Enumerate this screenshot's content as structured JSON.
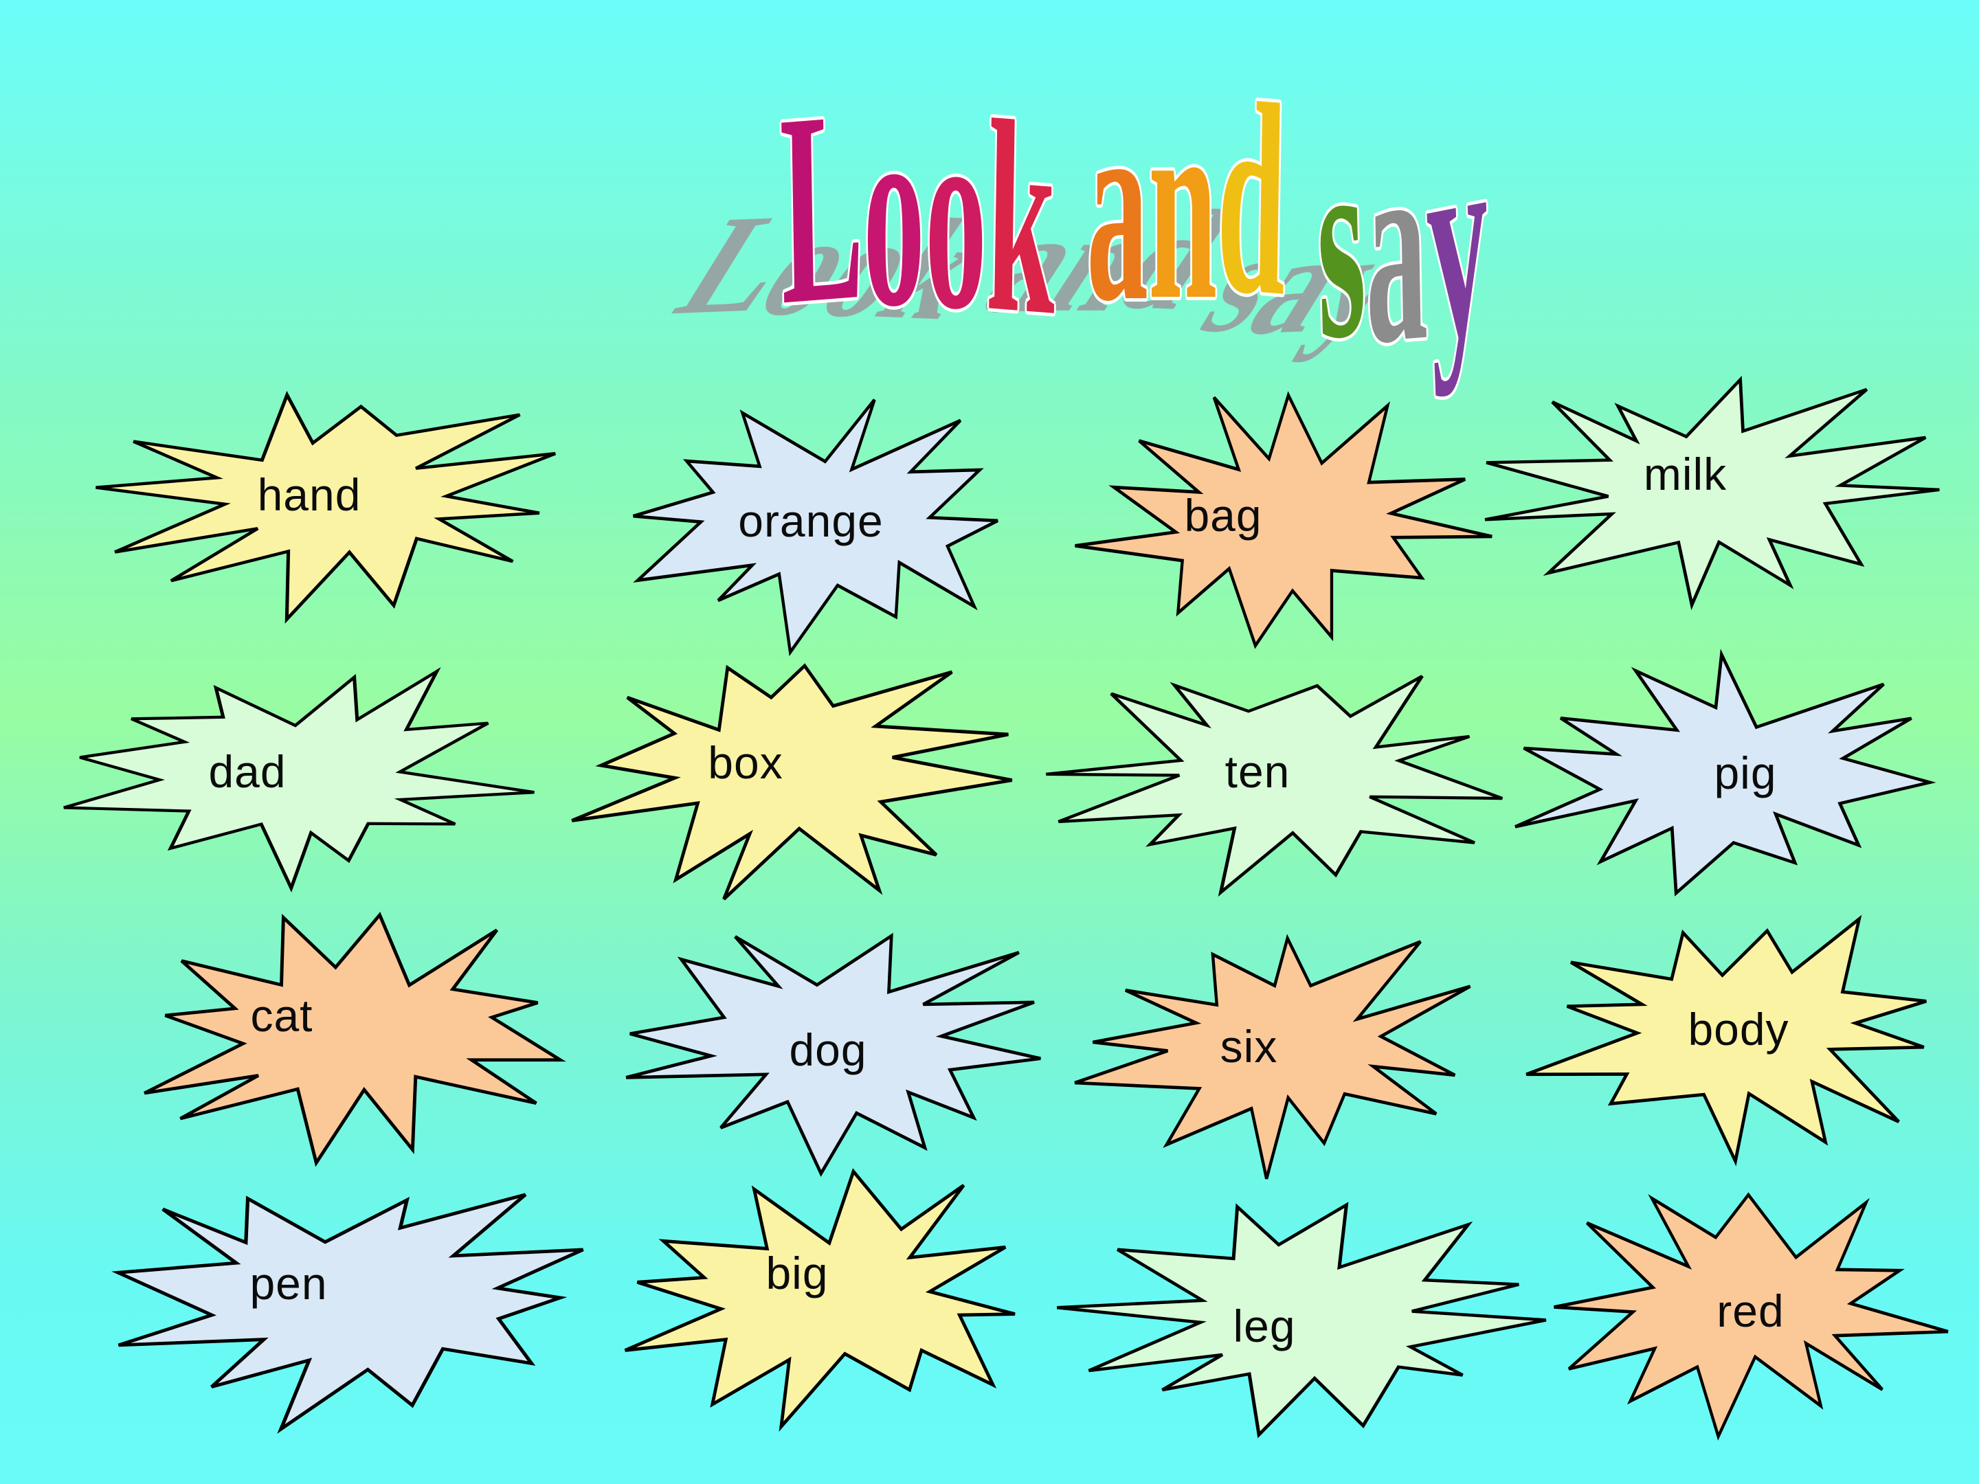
{
  "slide": {
    "background": {
      "top": "#6BFDFA",
      "upper_mid": "#83F9C8",
      "mid_green": "#98FCA2",
      "lower_mid": "#7CF5D2",
      "bottom": "#6AFBF8"
    },
    "title": {
      "text": "Look and say",
      "shadow_color": "#97A1A1",
      "letters": [
        {
          "ch": "L",
          "color": "#BE1273"
        },
        {
          "ch": "o",
          "color": "#C61670"
        },
        {
          "ch": "o",
          "color": "#CF1B61"
        },
        {
          "ch": "k",
          "color": "#DA2448"
        },
        {
          "ch": " ",
          "color": ""
        },
        {
          "ch": "a",
          "color": "#E9791B"
        },
        {
          "ch": "n",
          "color": "#F19D15"
        },
        {
          "ch": "d",
          "color": "#EFC013"
        },
        {
          "ch": " ",
          "color": ""
        },
        {
          "ch": "s",
          "color": "#55931F"
        },
        {
          "ch": "a",
          "color": "#8C8C8C"
        },
        {
          "ch": "y",
          "color": "#7E3D9C"
        }
      ]
    },
    "palette": {
      "yellow": "#FAF3A3",
      "blue": "#D8E8F6",
      "orange": "#FBC998",
      "green": "#D8FBD8",
      "stroke": "#000000",
      "text": "#0b0b0b"
    },
    "cards": [
      {
        "word": "hand",
        "fill": "yellow"
      },
      {
        "word": "orange",
        "fill": "blue"
      },
      {
        "word": "bag",
        "fill": "orange"
      },
      {
        "word": "milk",
        "fill": "green"
      },
      {
        "word": "dad",
        "fill": "green"
      },
      {
        "word": "box",
        "fill": "yellow"
      },
      {
        "word": "ten",
        "fill": "green"
      },
      {
        "word": "pig",
        "fill": "blue"
      },
      {
        "word": "cat",
        "fill": "orange"
      },
      {
        "word": "dog",
        "fill": "blue"
      },
      {
        "word": "six",
        "fill": "orange"
      },
      {
        "word": "body",
        "fill": "yellow"
      },
      {
        "word": "pen",
        "fill": "blue"
      },
      {
        "word": "big",
        "fill": "yellow"
      },
      {
        "word": "leg",
        "fill": "green"
      },
      {
        "word": "red",
        "fill": "orange"
      }
    ]
  }
}
